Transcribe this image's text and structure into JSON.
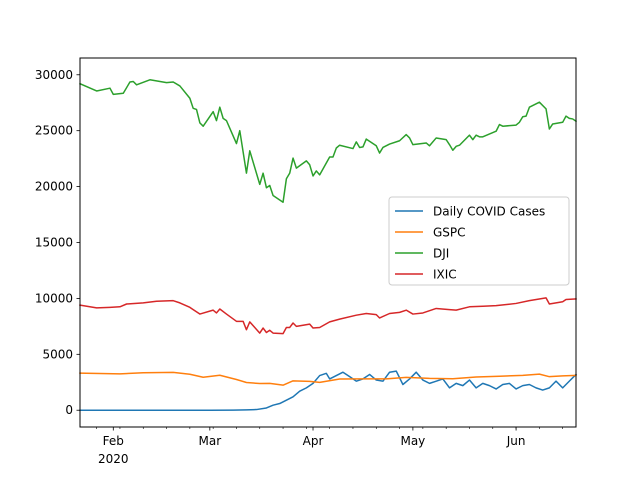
{
  "chart_data": {
    "type": "line",
    "title": "",
    "xlabel": "",
    "ylabel": "",
    "x_range": [
      "2020-01-22",
      "2020-06-19"
    ],
    "ylim": [
      -1500,
      31500
    ],
    "grid": false,
    "legend_position": "center-right",
    "x_ticks": [
      {
        "date": "2020-02-01",
        "label": "Feb",
        "sublabel": "2020"
      },
      {
        "date": "2020-03-01",
        "label": "Mar",
        "sublabel": ""
      },
      {
        "date": "2020-04-01",
        "label": "Apr",
        "sublabel": ""
      },
      {
        "date": "2020-05-01",
        "label": "May",
        "sublabel": ""
      },
      {
        "date": "2020-06-01",
        "label": "Jun",
        "sublabel": ""
      }
    ],
    "y_ticks": [
      {
        "value": 0,
        "label": "0"
      },
      {
        "value": 5000,
        "label": "5000"
      },
      {
        "value": 10000,
        "label": "10000"
      },
      {
        "value": 15000,
        "label": "15000"
      },
      {
        "value": 20000,
        "label": "20000"
      },
      {
        "value": 25000,
        "label": "25000"
      },
      {
        "value": 30000,
        "label": "30000"
      }
    ],
    "series": [
      {
        "name": "Daily COVID Cases",
        "color": "#1f77b4",
        "points": [
          [
            "2020-01-22",
            0
          ],
          [
            "2020-02-01",
            0
          ],
          [
            "2020-02-15",
            0
          ],
          [
            "2020-03-01",
            0
          ],
          [
            "2020-03-08",
            5
          ],
          [
            "2020-03-12",
            30
          ],
          [
            "2020-03-15",
            60
          ],
          [
            "2020-03-18",
            200
          ],
          [
            "2020-03-20",
            450
          ],
          [
            "2020-03-22",
            600
          ],
          [
            "2020-03-24",
            900
          ],
          [
            "2020-03-26",
            1200
          ],
          [
            "2020-03-28",
            1700
          ],
          [
            "2020-03-30",
            2000
          ],
          [
            "2020-04-01",
            2400
          ],
          [
            "2020-04-03",
            3100
          ],
          [
            "2020-04-05",
            3300
          ],
          [
            "2020-04-06",
            2800
          ],
          [
            "2020-04-08",
            3100
          ],
          [
            "2020-04-10",
            3400
          ],
          [
            "2020-04-12",
            3000
          ],
          [
            "2020-04-14",
            2600
          ],
          [
            "2020-04-16",
            2800
          ],
          [
            "2020-04-18",
            3200
          ],
          [
            "2020-04-20",
            2700
          ],
          [
            "2020-04-22",
            2600
          ],
          [
            "2020-04-24",
            3400
          ],
          [
            "2020-04-26",
            3500
          ],
          [
            "2020-04-28",
            2300
          ],
          [
            "2020-04-30",
            2800
          ],
          [
            "2020-05-02",
            3400
          ],
          [
            "2020-05-04",
            2700
          ],
          [
            "2020-05-06",
            2400
          ],
          [
            "2020-05-08",
            2600
          ],
          [
            "2020-05-10",
            2800
          ],
          [
            "2020-05-12",
            2000
          ],
          [
            "2020-05-14",
            2400
          ],
          [
            "2020-05-16",
            2200
          ],
          [
            "2020-05-18",
            2700
          ],
          [
            "2020-05-20",
            2000
          ],
          [
            "2020-05-22",
            2400
          ],
          [
            "2020-05-24",
            2200
          ],
          [
            "2020-05-26",
            1900
          ],
          [
            "2020-05-28",
            2300
          ],
          [
            "2020-05-30",
            2400
          ],
          [
            "2020-06-01",
            1900
          ],
          [
            "2020-06-03",
            2200
          ],
          [
            "2020-06-05",
            2300
          ],
          [
            "2020-06-07",
            2000
          ],
          [
            "2020-06-09",
            1800
          ],
          [
            "2020-06-11",
            2000
          ],
          [
            "2020-06-13",
            2600
          ],
          [
            "2020-06-15",
            2000
          ],
          [
            "2020-06-17",
            2600
          ],
          [
            "2020-06-19",
            3200
          ]
        ]
      },
      {
        "name": "GSPC",
        "color": "#ff7f0e",
        "points": [
          [
            "2020-01-22",
            3320
          ],
          [
            "2020-01-28",
            3280
          ],
          [
            "2020-02-03",
            3250
          ],
          [
            "2020-02-10",
            3350
          ],
          [
            "2020-02-19",
            3380
          ],
          [
            "2020-02-24",
            3220
          ],
          [
            "2020-02-28",
            2950
          ],
          [
            "2020-03-04",
            3130
          ],
          [
            "2020-03-09",
            2750
          ],
          [
            "2020-03-12",
            2480
          ],
          [
            "2020-03-16",
            2390
          ],
          [
            "2020-03-19",
            2400
          ],
          [
            "2020-03-23",
            2240
          ],
          [
            "2020-03-26",
            2630
          ],
          [
            "2020-03-31",
            2580
          ],
          [
            "2020-04-03",
            2490
          ],
          [
            "2020-04-09",
            2790
          ],
          [
            "2020-04-16",
            2800
          ],
          [
            "2020-04-23",
            2800
          ],
          [
            "2020-04-29",
            2940
          ],
          [
            "2020-05-06",
            2850
          ],
          [
            "2020-05-13",
            2820
          ],
          [
            "2020-05-20",
            2970
          ],
          [
            "2020-05-27",
            3040
          ],
          [
            "2020-06-03",
            3120
          ],
          [
            "2020-06-08",
            3230
          ],
          [
            "2020-06-11",
            3000
          ],
          [
            "2020-06-15",
            3070
          ],
          [
            "2020-06-19",
            3110
          ]
        ]
      },
      {
        "name": "DJI",
        "color": "#2ca02c",
        "points": [
          [
            "2020-01-22",
            29200
          ],
          [
            "2020-01-27",
            28550
          ],
          [
            "2020-01-31",
            28800
          ],
          [
            "2020-02-01",
            28250
          ],
          [
            "2020-02-04",
            28350
          ],
          [
            "2020-02-06",
            29350
          ],
          [
            "2020-02-07",
            29400
          ],
          [
            "2020-02-08",
            29100
          ],
          [
            "2020-02-12",
            29550
          ],
          [
            "2020-02-17",
            29300
          ],
          [
            "2020-02-19",
            29350
          ],
          [
            "2020-02-21",
            29000
          ],
          [
            "2020-02-24",
            27900
          ],
          [
            "2020-02-25",
            27000
          ],
          [
            "2020-02-26",
            26900
          ],
          [
            "2020-02-27",
            25700
          ],
          [
            "2020-02-28",
            25400
          ],
          [
            "2020-03-02",
            26700
          ],
          [
            "2020-03-03",
            25900
          ],
          [
            "2020-03-04",
            27100
          ],
          [
            "2020-03-05",
            26100
          ],
          [
            "2020-03-06",
            25900
          ],
          [
            "2020-03-09",
            23850
          ],
          [
            "2020-03-10",
            25000
          ],
          [
            "2020-03-12",
            21200
          ],
          [
            "2020-03-13",
            23200
          ],
          [
            "2020-03-16",
            20200
          ],
          [
            "2020-03-17",
            21200
          ],
          [
            "2020-03-18",
            19900
          ],
          [
            "2020-03-19",
            20100
          ],
          [
            "2020-03-20",
            19200
          ],
          [
            "2020-03-23",
            18600
          ],
          [
            "2020-03-24",
            20700
          ],
          [
            "2020-03-25",
            21200
          ],
          [
            "2020-03-26",
            22550
          ],
          [
            "2020-03-27",
            21650
          ],
          [
            "2020-03-30",
            22300
          ],
          [
            "2020-03-31",
            21950
          ],
          [
            "2020-04-01",
            20950
          ],
          [
            "2020-04-02",
            21400
          ],
          [
            "2020-04-03",
            21050
          ],
          [
            "2020-04-06",
            22650
          ],
          [
            "2020-04-07",
            22650
          ],
          [
            "2020-04-08",
            23450
          ],
          [
            "2020-04-09",
            23700
          ],
          [
            "2020-04-13",
            23400
          ],
          [
            "2020-04-14",
            24000
          ],
          [
            "2020-04-15",
            23500
          ],
          [
            "2020-04-16",
            23550
          ],
          [
            "2020-04-17",
            24250
          ],
          [
            "2020-04-20",
            23650
          ],
          [
            "2020-04-21",
            23000
          ],
          [
            "2020-04-22",
            23500
          ],
          [
            "2020-04-24",
            23800
          ],
          [
            "2020-04-27",
            24100
          ],
          [
            "2020-04-29",
            24650
          ],
          [
            "2020-04-30",
            24350
          ],
          [
            "2020-05-01",
            23750
          ],
          [
            "2020-05-05",
            23900
          ],
          [
            "2020-05-06",
            23650
          ],
          [
            "2020-05-08",
            24350
          ],
          [
            "2020-05-11",
            24200
          ],
          [
            "2020-05-12",
            23750
          ],
          [
            "2020-05-13",
            23250
          ],
          [
            "2020-05-14",
            23600
          ],
          [
            "2020-05-15",
            23700
          ],
          [
            "2020-05-18",
            24600
          ],
          [
            "2020-05-19",
            24200
          ],
          [
            "2020-05-20",
            24600
          ],
          [
            "2020-05-21",
            24450
          ],
          [
            "2020-05-22",
            24450
          ],
          [
            "2020-05-26",
            24950
          ],
          [
            "2020-05-27",
            25550
          ],
          [
            "2020-05-28",
            25400
          ],
          [
            "2020-06-01",
            25500
          ],
          [
            "2020-06-02",
            25750
          ],
          [
            "2020-06-03",
            26250
          ],
          [
            "2020-06-04",
            26300
          ],
          [
            "2020-06-05",
            27100
          ],
          [
            "2020-06-08",
            27550
          ],
          [
            "2020-06-10",
            26950
          ],
          [
            "2020-06-11",
            25150
          ],
          [
            "2020-06-12",
            25600
          ],
          [
            "2020-06-15",
            25750
          ],
          [
            "2020-06-16",
            26300
          ],
          [
            "2020-06-17",
            26100
          ],
          [
            "2020-06-18",
            26050
          ],
          [
            "2020-06-19",
            25850
          ]
        ]
      },
      {
        "name": "IXIC",
        "color": "#d62728",
        "points": [
          [
            "2020-01-22",
            9400
          ],
          [
            "2020-01-27",
            9150
          ],
          [
            "2020-01-31",
            9200
          ],
          [
            "2020-02-03",
            9250
          ],
          [
            "2020-02-05",
            9500
          ],
          [
            "2020-02-10",
            9600
          ],
          [
            "2020-02-14",
            9750
          ],
          [
            "2020-02-19",
            9800
          ],
          [
            "2020-02-21",
            9600
          ],
          [
            "2020-02-24",
            9200
          ],
          [
            "2020-02-25",
            9000
          ],
          [
            "2020-02-27",
            8600
          ],
          [
            "2020-03-02",
            8950
          ],
          [
            "2020-03-03",
            8700
          ],
          [
            "2020-03-04",
            9050
          ],
          [
            "2020-03-06",
            8600
          ],
          [
            "2020-03-09",
            7950
          ],
          [
            "2020-03-11",
            7950
          ],
          [
            "2020-03-12",
            7200
          ],
          [
            "2020-03-13",
            7900
          ],
          [
            "2020-03-16",
            6900
          ],
          [
            "2020-03-17",
            7350
          ],
          [
            "2020-03-18",
            6950
          ],
          [
            "2020-03-19",
            7150
          ],
          [
            "2020-03-20",
            6900
          ],
          [
            "2020-03-23",
            6850
          ],
          [
            "2020-03-24",
            7400
          ],
          [
            "2020-03-25",
            7400
          ],
          [
            "2020-03-26",
            7800
          ],
          [
            "2020-03-27",
            7500
          ],
          [
            "2020-03-31",
            7700
          ],
          [
            "2020-04-01",
            7350
          ],
          [
            "2020-04-03",
            7400
          ],
          [
            "2020-04-06",
            7900
          ],
          [
            "2020-04-09",
            8150
          ],
          [
            "2020-04-14",
            8500
          ],
          [
            "2020-04-17",
            8650
          ],
          [
            "2020-04-20",
            8550
          ],
          [
            "2020-04-21",
            8250
          ],
          [
            "2020-04-24",
            8650
          ],
          [
            "2020-04-27",
            8750
          ],
          [
            "2020-04-29",
            8950
          ],
          [
            "2020-05-01",
            8600
          ],
          [
            "2020-05-04",
            8700
          ],
          [
            "2020-05-08",
            9100
          ],
          [
            "2020-05-12",
            9000
          ],
          [
            "2020-05-14",
            8950
          ],
          [
            "2020-05-18",
            9250
          ],
          [
            "2020-05-22",
            9300
          ],
          [
            "2020-05-26",
            9350
          ],
          [
            "2020-06-01",
            9550
          ],
          [
            "2020-06-05",
            9800
          ],
          [
            "2020-06-10",
            10050
          ],
          [
            "2020-06-11",
            9500
          ],
          [
            "2020-06-15",
            9700
          ],
          [
            "2020-06-16",
            9900
          ],
          [
            "2020-06-19",
            9950
          ]
        ]
      }
    ]
  }
}
